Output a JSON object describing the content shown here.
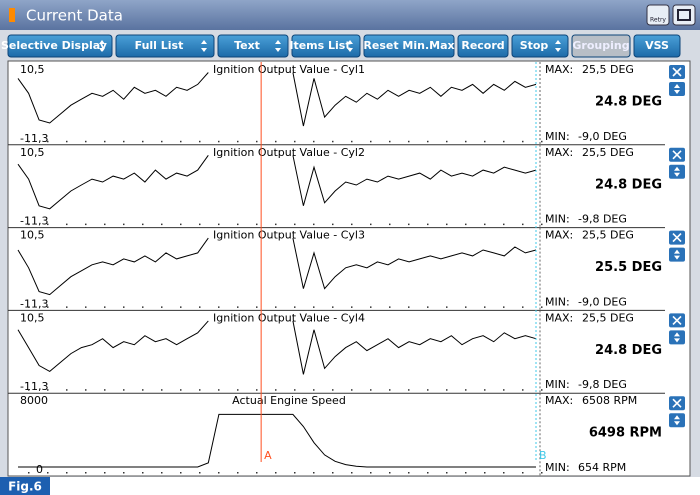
{
  "header": {
    "title": "Current Data",
    "retry": "Retry"
  },
  "toolbar": {
    "buttons": [
      {
        "label": "Selective Display",
        "dropdown": true
      },
      {
        "label": "Full List",
        "dropdown": true
      },
      {
        "label": "Text",
        "dropdown": true
      },
      {
        "label": "Items List",
        "dropdown": true
      },
      {
        "label": "Reset Min.Max",
        "dropdown": false
      },
      {
        "label": "Record",
        "dropdown": false
      },
      {
        "label": "Stop",
        "dropdown": true
      },
      {
        "label": "Grouping",
        "dropdown": false,
        "disabled": true
      },
      {
        "label": "VSS",
        "dropdown": false
      }
    ]
  },
  "chart_data": [
    {
      "type": "line",
      "title": "Ignition Output Value - Cyl1",
      "color": "#000000",
      "ylim": [
        -11.3,
        10.5
      ],
      "yticks": [
        {
          "value": -11.3,
          "label": "-11,3"
        },
        {
          "value": 10.5,
          "label": "10,5"
        }
      ],
      "values": [
        8,
        3,
        -6,
        -7,
        -4,
        -1,
        1,
        3,
        2,
        4,
        1,
        5,
        3,
        4,
        2,
        5,
        4,
        6,
        10,
        null,
        null,
        null,
        null,
        null,
        null,
        null,
        10,
        -8,
        8,
        -5,
        -1,
        2,
        0,
        3,
        1,
        4,
        2,
        4,
        3,
        5,
        2,
        5,
        4,
        6,
        3,
        6,
        4,
        7,
        5,
        6
      ],
      "max_label": "MAX:",
      "max": "25,5 DEG",
      "current": "24.8 DEG",
      "min_label": "MIN:",
      "min": "-9,0 DEG"
    },
    {
      "type": "line",
      "title": "Ignition Output Value - Cyl2",
      "color": "#000000",
      "ylim": [
        -11.3,
        10.5
      ],
      "yticks": [
        {
          "value": -11.3,
          "label": "-11,3"
        },
        {
          "value": 10.5,
          "label": "10,5"
        }
      ],
      "values": [
        7,
        2,
        -7,
        -8,
        -5,
        -2,
        0,
        2,
        1,
        3,
        2,
        4,
        1,
        5,
        2,
        4,
        3,
        5,
        10,
        null,
        null,
        null,
        null,
        null,
        null,
        null,
        10,
        -7,
        6,
        -6,
        -2,
        1,
        0,
        2,
        1,
        3,
        2,
        3,
        4,
        2,
        5,
        3,
        4,
        3,
        5,
        4,
        6,
        5,
        4,
        5
      ],
      "max_label": "MAX:",
      "max": "25,5 DEG",
      "current": "24.8 DEG",
      "min_label": "MIN:",
      "min": "-9,8 DEG"
    },
    {
      "type": "line",
      "title": "Ignition Output Value - Cyl3",
      "color": "#000000",
      "ylim": [
        -11.3,
        10.5
      ],
      "yticks": [
        {
          "value": -11.3,
          "label": "-11,3"
        },
        {
          "value": 10.5,
          "label": "10,5"
        }
      ],
      "values": [
        6,
        0,
        -8,
        -9,
        -6,
        -3,
        -1,
        1,
        2,
        1,
        3,
        2,
        4,
        2,
        5,
        3,
        4,
        5,
        10,
        null,
        null,
        null,
        null,
        null,
        null,
        null,
        10,
        -7,
        5,
        -7,
        -3,
        0,
        1,
        0,
        2,
        1,
        3,
        2,
        3,
        4,
        3,
        4,
        5,
        4,
        6,
        5,
        4,
        7,
        5,
        6
      ],
      "max_label": "MAX:",
      "max": "25,5 DEG",
      "current": "25.5 DEG",
      "min_label": "MIN:",
      "min": "-9,0 DEG"
    },
    {
      "type": "line",
      "title": "Ignition Output Value - Cyl4",
      "color": "#000000",
      "ylim": [
        -11.3,
        10.5
      ],
      "yticks": [
        {
          "value": -11.3,
          "label": "-11,3"
        },
        {
          "value": 10.5,
          "label": "10,5"
        }
      ],
      "values": [
        7,
        1,
        -5,
        -7,
        -4,
        -1,
        1,
        2,
        4,
        1,
        3,
        2,
        5,
        3,
        4,
        2,
        4,
        6,
        10,
        null,
        null,
        null,
        null,
        null,
        null,
        null,
        10,
        -8,
        7,
        -6,
        -2,
        1,
        3,
        0,
        2,
        4,
        1,
        3,
        2,
        4,
        3,
        5,
        2,
        4,
        5,
        3,
        6,
        4,
        5,
        4
      ],
      "max_label": "MAX:",
      "max": "25,5 DEG",
      "current": "24.8 DEG",
      "min_label": "MIN:",
      "min": "-9,8 DEG"
    },
    {
      "type": "line",
      "title": "Actual Engine Speed",
      "color": "#000000",
      "ylim": [
        0,
        8000
      ],
      "yticks": [
        0,
        8000
      ],
      "values": [
        0,
        0,
        0,
        0,
        0,
        0,
        0,
        0,
        0,
        0,
        0,
        0,
        0,
        0,
        0,
        0,
        0,
        0,
        500,
        6500,
        6500,
        6500,
        6500,
        6500,
        6500,
        6500,
        6500,
        5000,
        3000,
        1500,
        700,
        300,
        100,
        0,
        0,
        0,
        0,
        0,
        0,
        0,
        0,
        0,
        0,
        0,
        0,
        0,
        0,
        0,
        0,
        0
      ],
      "max_label": "MAX:",
      "max": "6508 RPM",
      "current": "6498 RPM",
      "min_label": "MIN:",
      "min": "654 RPM"
    }
  ],
  "cursors": [
    {
      "label": "A",
      "index": 23,
      "color": "#ff5020"
    },
    {
      "label": "B",
      "index": 49,
      "color": "#40c8e8"
    }
  ],
  "figure_label": "Fig.6"
}
